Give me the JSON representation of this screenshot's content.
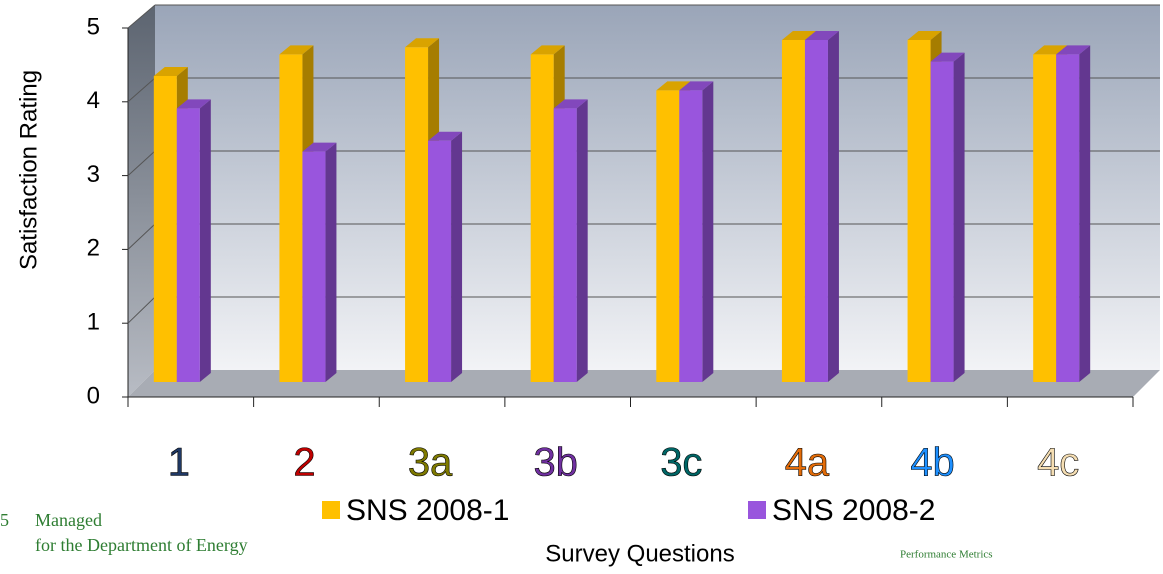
{
  "chart_data": {
    "type": "bar3d",
    "categories": [
      "1",
      "2",
      "3a",
      "3b",
      "3c",
      "4a",
      "4b",
      "4c"
    ],
    "category_colors": [
      "#1f3864",
      "#c00000",
      "#7f7a00",
      "#7030a0",
      "#006666",
      "#e36c09",
      "#1e90ff",
      "#f5deb3"
    ],
    "series": [
      {
        "name": "SNS 2008-1",
        "color": "#ffc000",
        "values": [
          4.25,
          4.55,
          4.65,
          4.55,
          4.05,
          4.75,
          4.75,
          4.55
        ]
      },
      {
        "name": "SNS 2008-2",
        "color": "#9955dd",
        "values": [
          3.8,
          3.2,
          3.35,
          3.8,
          4.05,
          4.75,
          4.45,
          4.55
        ]
      }
    ],
    "ylim": [
      0,
      5
    ],
    "yticks": [
      0,
      1,
      2,
      3,
      4,
      5
    ],
    "grid": true,
    "ylabel": "Satisfaction Rating",
    "xlabel": "Survey Questions"
  },
  "footer": {
    "page": "5",
    "line1": "Managed",
    "line2": "for the Department of Energy",
    "section": "Performance Metrics"
  }
}
